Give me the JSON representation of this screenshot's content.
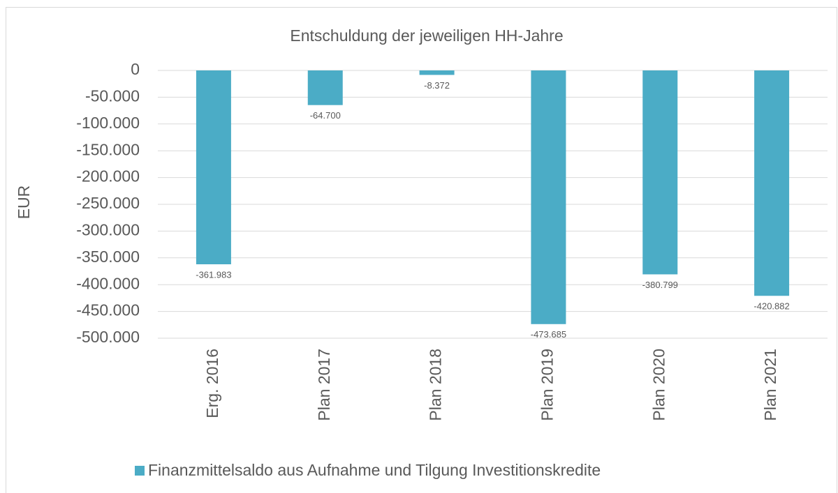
{
  "chart_data": {
    "type": "bar",
    "title": "Entschuldung der jeweiligen HH-Jahre",
    "y_label": "EUR",
    "categories": [
      "Erg. 2016",
      "Plan 2017",
      "Plan 2018",
      "Plan 2019",
      "Plan 2020",
      "Plan 2021"
    ],
    "series": [
      {
        "name": "Finanzmittelsaldo aus Aufnahme und Tilgung Investitionskredite",
        "color": "#4bacc6",
        "values": [
          -361983,
          -64700,
          -8372,
          -473685,
          -380799,
          -420882
        ],
        "value_labels": [
          "-361.983",
          "-64.700",
          "-8.372",
          "-473.685",
          "-380.799",
          "-420.882"
        ]
      }
    ],
    "ylim": [
      -500000,
      0
    ],
    "yticks": [
      0,
      {
        "value": -50000,
        "label": "-50.000"
      },
      {
        "value": -100000,
        "label": "-100.000"
      },
      {
        "value": -150000,
        "label": "-150.000"
      },
      {
        "value": -200000,
        "label": "-200.000"
      },
      {
        "value": -250000,
        "label": "-250.000"
      },
      {
        "value": -300000,
        "label": "-300.000"
      },
      {
        "value": -350000,
        "label": "-350.000"
      },
      {
        "value": -400000,
        "label": "-400.000"
      },
      {
        "value": -450000,
        "label": "-450.000"
      },
      {
        "value": -500000,
        "label": "-500.000"
      }
    ],
    "grid": true,
    "legend": "bottom"
  }
}
